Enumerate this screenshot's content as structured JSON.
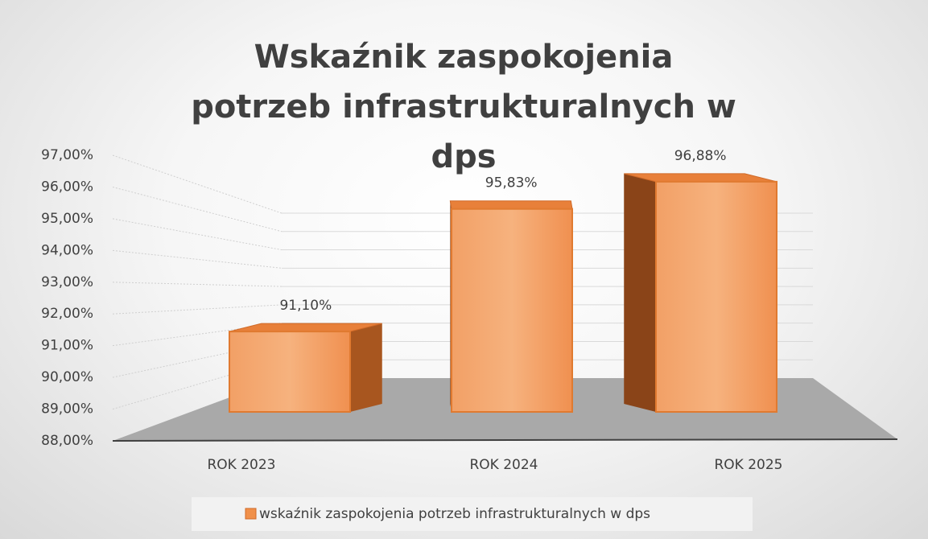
{
  "chart_data": {
    "type": "bar3d",
    "title": "Wskaźnik zaspokojenia potrzeb infrastrukturalnych w dps",
    "categories": [
      "ROK 2023",
      "ROK 2024",
      "ROK 2025"
    ],
    "series": [
      {
        "name": "wskaźnik zaspokojenia potrzeb infrastrukturalnych w dps",
        "color": "#f0904a",
        "values": [
          91.1,
          95.83,
          96.88
        ],
        "value_labels": [
          "91,10%",
          "95,83%",
          "96,88%"
        ]
      }
    ],
    "ylim": [
      88,
      97
    ],
    "yticks": [
      {
        "value": 88,
        "label": "88,00%"
      },
      {
        "value": 89,
        "label": "89,00%"
      },
      {
        "value": 90,
        "label": "90,00%"
      },
      {
        "value": 91,
        "label": "91,00%"
      },
      {
        "value": 92,
        "label": "92,00%"
      },
      {
        "value": 93,
        "label": "93,00%"
      },
      {
        "value": 94,
        "label": "94,00%"
      },
      {
        "value": 95,
        "label": "95,00%"
      },
      {
        "value": 96,
        "label": "96,00%"
      },
      {
        "value": 97,
        "label": "97,00%"
      }
    ],
    "grid": true,
    "legend": "bottom"
  }
}
